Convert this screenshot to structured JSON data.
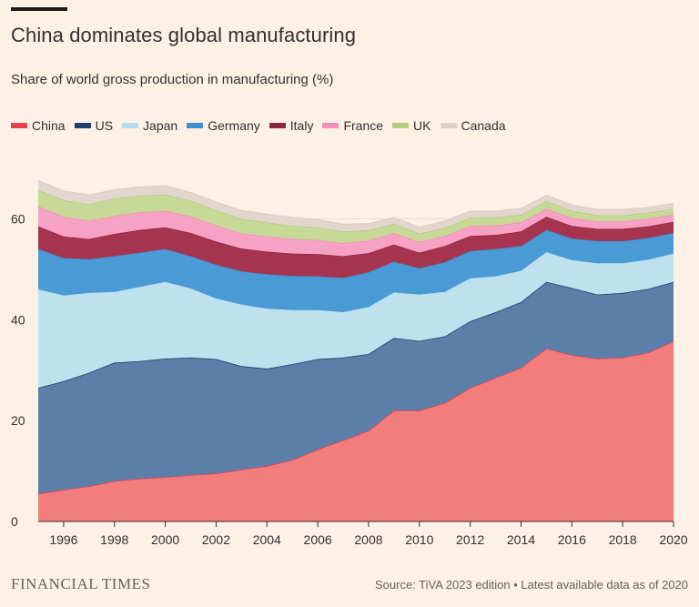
{
  "header": {
    "title": "China dominates global manufacturing",
    "subtitle": "Share of world gross production in manufacturing (%)"
  },
  "footer": {
    "brand": "FINANCIAL TIMES",
    "source": "Source: TiVA 2023 edition • Latest available data as of 2020"
  },
  "chart_data": {
    "type": "area",
    "stacked": true,
    "title": "China dominates global manufacturing",
    "subtitle": "Share of world gross production in manufacturing (%)",
    "xlabel": "",
    "ylabel": "",
    "x": [
      1995,
      1996,
      1997,
      1998,
      1999,
      2000,
      2001,
      2002,
      2003,
      2004,
      2005,
      2006,
      2007,
      2008,
      2009,
      2010,
      2011,
      2012,
      2013,
      2014,
      2015,
      2016,
      2017,
      2018,
      2019,
      2020
    ],
    "xticks": [
      1996,
      1998,
      2000,
      2002,
      2004,
      2006,
      2008,
      2010,
      2012,
      2014,
      2016,
      2018,
      2020
    ],
    "yticks": [
      0,
      20,
      40,
      60
    ],
    "ylim": [
      0,
      70
    ],
    "legend_position": "top-left",
    "series": [
      {
        "name": "China",
        "color": "#f37d7d",
        "line": "#e0454f",
        "values": [
          5.5,
          6.3,
          7.0,
          8.0,
          8.5,
          8.8,
          9.2,
          9.5,
          10.3,
          11.0,
          12.2,
          14.3,
          16.1,
          18.0,
          22.0,
          22.0,
          23.5,
          26.5,
          28.5,
          30.5,
          34.3,
          33.0,
          32.3,
          32.5,
          33.5,
          35.7
        ]
      },
      {
        "name": "US",
        "color": "#5b7fa8",
        "line": "#1f3f6e",
        "values": [
          21.0,
          21.5,
          22.5,
          23.5,
          23.3,
          23.5,
          23.3,
          22.7,
          20.5,
          19.3,
          19.0,
          17.9,
          16.4,
          15.2,
          14.4,
          13.8,
          13.2,
          13.2,
          13.0,
          13.0,
          13.2,
          13.3,
          12.7,
          12.8,
          12.6,
          11.8
        ]
      },
      {
        "name": "Japan",
        "color": "#bde2ee",
        "line": "#b5dcea",
        "values": [
          19.5,
          17.0,
          15.8,
          14.0,
          14.7,
          15.2,
          13.7,
          12.0,
          12.2,
          11.9,
          10.7,
          9.7,
          9.0,
          9.3,
          9.0,
          9.2,
          8.8,
          8.5,
          7.1,
          6.2,
          5.9,
          5.5,
          6.2,
          5.9,
          5.8,
          5.6
        ]
      },
      {
        "name": "Germany",
        "color": "#4a9ad6",
        "line": "#3d8fcf",
        "values": [
          8.0,
          7.4,
          6.7,
          7.1,
          6.8,
          6.5,
          6.4,
          6.7,
          6.6,
          6.8,
          6.8,
          6.7,
          6.8,
          6.9,
          6.1,
          5.2,
          5.9,
          5.4,
          5.4,
          4.9,
          4.4,
          4.3,
          4.4,
          4.4,
          4.3,
          4.1
        ]
      },
      {
        "name": "Italy",
        "color": "#a6344f",
        "line": "#8c2640",
        "values": [
          4.5,
          4.3,
          4.0,
          4.4,
          4.5,
          4.3,
          4.6,
          4.6,
          4.5,
          4.5,
          4.4,
          4.4,
          4.3,
          3.8,
          3.4,
          3.1,
          3.2,
          3.0,
          2.8,
          2.9,
          2.6,
          2.5,
          2.4,
          2.4,
          2.3,
          2.2
        ]
      },
      {
        "name": "France",
        "color": "#f7a1c4",
        "line": "#f48fb8",
        "values": [
          4.0,
          3.9,
          3.6,
          3.6,
          3.5,
          3.3,
          3.3,
          3.2,
          3.0,
          3.0,
          2.9,
          2.8,
          2.6,
          2.5,
          2.3,
          2.1,
          2.0,
          2.0,
          1.9,
          1.8,
          1.6,
          1.6,
          1.5,
          1.5,
          1.5,
          1.4
        ]
      },
      {
        "name": "UK",
        "color": "#c7d996",
        "line": "#b5cc80",
        "values": [
          3.2,
          3.3,
          3.3,
          3.4,
          3.3,
          3.2,
          3.1,
          3.0,
          2.9,
          2.8,
          2.6,
          2.5,
          2.3,
          2.0,
          1.8,
          1.7,
          1.6,
          1.6,
          1.6,
          1.5,
          1.5,
          1.4,
          1.2,
          1.2,
          1.2,
          1.2
        ]
      },
      {
        "name": "Canada",
        "color": "#e3d6cf",
        "line": "#ddcfc6",
        "values": [
          1.8,
          1.8,
          1.8,
          1.7,
          1.7,
          1.7,
          1.6,
          1.6,
          1.6,
          1.6,
          1.6,
          1.5,
          1.4,
          1.3,
          1.2,
          1.2,
          1.3,
          1.3,
          1.2,
          1.2,
          1.1,
          1.1,
          1.1,
          1.1,
          1.0,
          1.0
        ]
      }
    ]
  }
}
